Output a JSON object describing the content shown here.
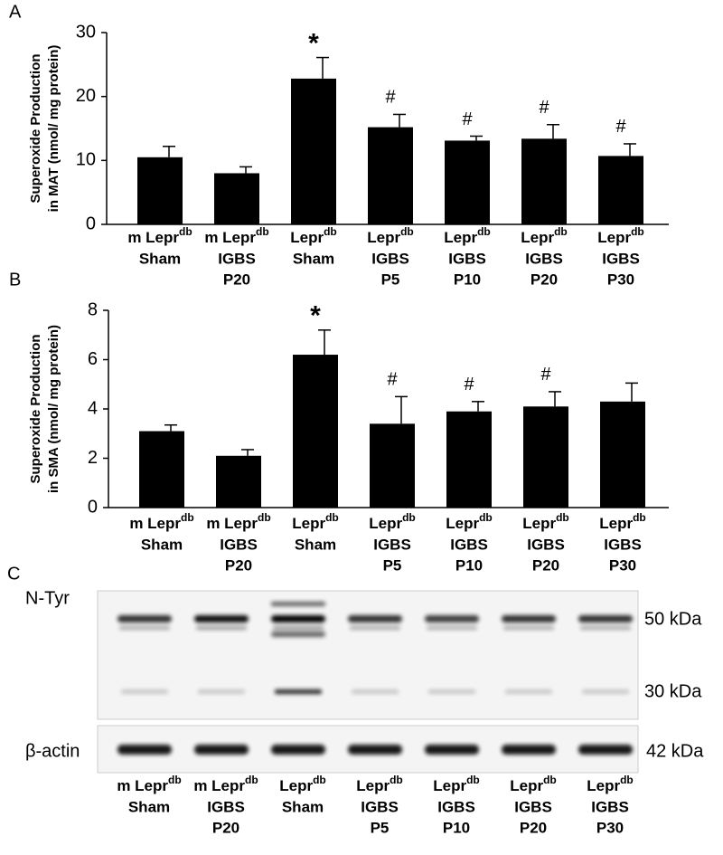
{
  "chart_data": [
    {
      "type": "bar",
      "panel": "A",
      "ylabel": [
        "Superoxide Production",
        "in MAT (nmol/ mg protein)"
      ],
      "categories": [
        [
          "m Lepr",
          "db",
          "Sham"
        ],
        [
          "m Lepr",
          "db",
          "IGBS",
          "P20"
        ],
        [
          "Lepr",
          "db",
          "Sham"
        ],
        [
          "Lepr",
          "db",
          "IGBS",
          "P5"
        ],
        [
          "Lepr",
          "db",
          "IGBS",
          "P10"
        ],
        [
          "Lepr",
          "db",
          "IGBS",
          "P20"
        ],
        [
          "Lepr",
          "db",
          "IGBS",
          "P30"
        ]
      ],
      "values": [
        10.5,
        8,
        22.8,
        15.2,
        13.1,
        13.4,
        10.7
      ],
      "errors": [
        1.7,
        1.0,
        3.3,
        2.0,
        0.7,
        2.2,
        1.9
      ],
      "markers": [
        null,
        null,
        "*",
        "#",
        "#",
        "#",
        "#"
      ],
      "color": "#000000",
      "ylim": [
        0,
        30
      ],
      "yticks": [
        0,
        10,
        20,
        30
      ]
    },
    {
      "type": "bar",
      "panel": "B",
      "ylabel": [
        "Superoxide Production",
        "in SMA (nmol/ mg protein)"
      ],
      "categories": [
        [
          "m Lepr",
          "db",
          "Sham"
        ],
        [
          "m Lepr",
          "db",
          "IGBS",
          "P20"
        ],
        [
          "Lepr",
          "db",
          "Sham"
        ],
        [
          "Lepr",
          "db",
          "IGBS",
          "P5"
        ],
        [
          "Lepr",
          "db",
          "IGBS",
          "P10"
        ],
        [
          "Lepr",
          "db",
          "IGBS",
          "P20"
        ],
        [
          "Lepr",
          "db",
          "IGBS",
          "P30"
        ]
      ],
      "values": [
        3.1,
        2.1,
        6.2,
        3.4,
        3.9,
        4.1,
        4.3
      ],
      "errors": [
        0.25,
        0.25,
        1.0,
        1.1,
        0.4,
        0.6,
        0.75
      ],
      "markers": [
        null,
        null,
        "*",
        "#",
        "#",
        "#",
        null
      ],
      "color": "#000000",
      "ylim": [
        0,
        8
      ],
      "yticks": [
        0,
        2,
        4,
        6,
        8
      ]
    }
  ],
  "blot": {
    "panel": "C",
    "rows": [
      {
        "name": "N-Tyr",
        "sizes": [
          "50 kDa",
          "30 kDa"
        ]
      },
      {
        "name": "β-actin",
        "sizes": [
          "42 kDa"
        ]
      }
    ],
    "lanes": [
      [
        "m Lepr",
        "db",
        "Sham"
      ],
      [
        "m Lepr",
        "db",
        "IGBS",
        "P20"
      ],
      [
        "Lepr",
        "db",
        "Sham"
      ],
      [
        "Lepr",
        "db",
        "IGBS",
        "P5"
      ],
      [
        "Lepr",
        "db",
        "IGBS",
        "P10"
      ],
      [
        "Lepr",
        "db",
        "IGBS",
        "P20"
      ],
      [
        "Lepr",
        "db",
        "IGBS",
        "P30"
      ]
    ]
  }
}
